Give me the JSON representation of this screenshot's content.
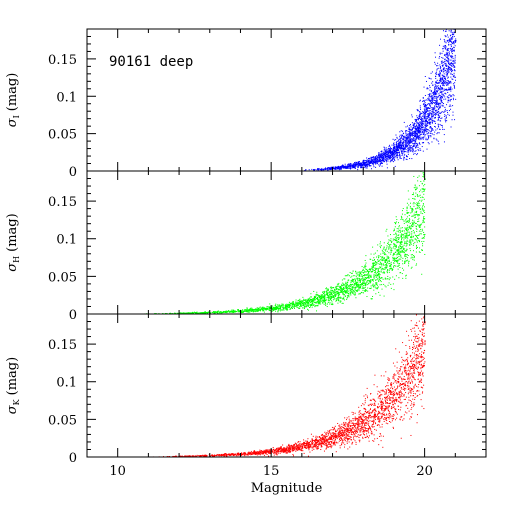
{
  "chart_data": {
    "type": "scatter",
    "annotation": "90161 deep",
    "xlabel": "Magnitude",
    "xlim": [
      9,
      22
    ],
    "xticks": [
      10,
      15,
      20
    ],
    "colors": {
      "I": "#0000ff",
      "H": "#00ff00",
      "K": "#ff0000",
      "axes": "#000000"
    },
    "panels": [
      {
        "band": "I",
        "ylabel_sigma": "σ",
        "ylabel_sub": "I",
        "ylabel_unit": "(mag)",
        "ylim": [
          0,
          0.19
        ],
        "yticks": [
          0,
          0.05,
          0.1,
          0.15
        ],
        "ytick_labels": [
          "0",
          "0.05",
          "0.1",
          "0.15"
        ],
        "trend": {
          "x0": 16.2,
          "mag_range": [
            16.0,
            21.0
          ],
          "a": 0.002,
          "b": 0.93,
          "spread": 0.24
        },
        "series": [
          {
            "name": "I",
            "color": "#0000ff",
            "sample": [
              [
                16.5,
                0.004
              ],
              [
                17.0,
                0.006
              ],
              [
                17.5,
                0.01
              ],
              [
                18.0,
                0.015
              ],
              [
                18.5,
                0.022
              ],
              [
                19.0,
                0.033
              ],
              [
                19.5,
                0.052
              ],
              [
                20.0,
                0.08
              ],
              [
                20.5,
                0.125
              ],
              [
                21.0,
                0.175
              ]
            ]
          }
        ]
      },
      {
        "band": "H",
        "ylabel_sigma": "σ",
        "ylabel_sub": "H",
        "ylabel_unit": "(mag)",
        "ylim": [
          0,
          0.19
        ],
        "yticks": [
          0,
          0.05,
          0.1,
          0.15
        ],
        "ytick_labels": [
          "0",
          "0.05",
          "0.1",
          "0.15"
        ],
        "trend": {
          "x0": 11.0,
          "mag_range": [
            10.5,
            20.0
          ],
          "a": 0.0008,
          "b": 0.58,
          "spread": 0.22
        },
        "series": [
          {
            "name": "H",
            "color": "#00ff00",
            "sample": [
              [
                12.0,
                0.001
              ],
              [
                14.0,
                0.003
              ],
              [
                15.5,
                0.006
              ],
              [
                16.5,
                0.012
              ],
              [
                17.5,
                0.025
              ],
              [
                18.0,
                0.035
              ],
              [
                18.5,
                0.05
              ],
              [
                19.0,
                0.075
              ],
              [
                19.5,
                0.115
              ],
              [
                20.0,
                0.18
              ]
            ]
          }
        ]
      },
      {
        "band": "K",
        "ylabel_sigma": "σ",
        "ylabel_sub": "K",
        "ylabel_unit": "(mag)",
        "ylim": [
          0,
          0.19
        ],
        "yticks": [
          0,
          0.05,
          0.1,
          0.15
        ],
        "ytick_labels": [
          "0",
          "0.05",
          "0.1",
          "0.15"
        ],
        "trend": {
          "x0": 11.0,
          "mag_range": [
            11.0,
            20.0
          ],
          "a": 0.0008,
          "b": 0.58,
          "spread": 0.24
        },
        "series": [
          {
            "name": "K",
            "color": "#ff0000",
            "sample": [
              [
                12.0,
                0.001
              ],
              [
                14.0,
                0.003
              ],
              [
                15.5,
                0.006
              ],
              [
                16.5,
                0.012
              ],
              [
                17.5,
                0.025
              ],
              [
                18.0,
                0.035
              ],
              [
                18.5,
                0.05
              ],
              [
                19.0,
                0.075
              ],
              [
                19.5,
                0.115
              ],
              [
                20.0,
                0.18
              ]
            ]
          }
        ]
      }
    ]
  }
}
